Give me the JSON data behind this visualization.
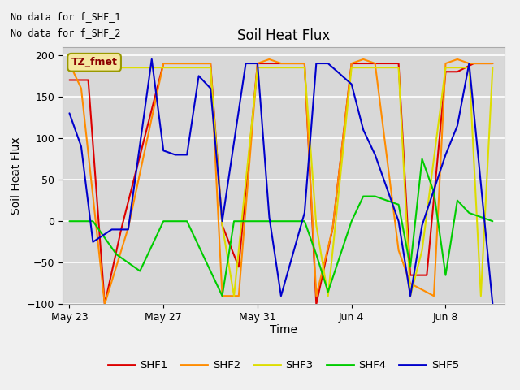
{
  "title": "Soil Heat Flux",
  "ylabel": "Soil Heat Flux",
  "xlabel": "Time",
  "ylim": [
    -100,
    210
  ],
  "yticks": [
    -100,
    -50,
    0,
    50,
    100,
    150,
    200
  ],
  "annotations": [
    "No data for f_SHF_1",
    "No data for f_SHF_2"
  ],
  "legend_label": "TZ_fmet",
  "xtick_labels": [
    "May 23",
    "May 27",
    "May 31",
    "Jun 4",
    "Jun 8"
  ],
  "xtick_pos": [
    0,
    4,
    8,
    12,
    16
  ],
  "xlim": [
    -0.3,
    18.5
  ],
  "series": {
    "SHF1": {
      "color": "#dd0000",
      "x": [
        0.0,
        0.8,
        1.5,
        2.2,
        4.0,
        4.5,
        5.2,
        6.0,
        6.5,
        7.2,
        8.0,
        8.5,
        9.2,
        10.0,
        10.5,
        11.2,
        12.0,
        12.5,
        13.2,
        14.0,
        14.5,
        15.2,
        16.0,
        16.5,
        17.2,
        18.0
      ],
      "y": [
        170,
        170,
        -100,
        -10,
        190,
        190,
        190,
        190,
        -5,
        -55,
        190,
        190,
        190,
        190,
        -100,
        -8,
        190,
        190,
        190,
        190,
        -65,
        -65,
        180,
        180,
        190,
        190
      ]
    },
    "SHF2": {
      "color": "#ff8c00",
      "x": [
        0.0,
        0.5,
        1.5,
        2.5,
        4.0,
        4.5,
        5.2,
        6.0,
        6.5,
        7.2,
        8.0,
        8.5,
        9.0,
        10.0,
        10.5,
        11.2,
        12.0,
        12.5,
        13.0,
        14.0,
        14.5,
        15.5,
        16.0,
        16.5,
        17.0,
        18.0
      ],
      "y": [
        190,
        160,
        -100,
        -8,
        190,
        190,
        190,
        190,
        -90,
        -90,
        190,
        195,
        190,
        190,
        -90,
        -8,
        190,
        195,
        190,
        -35,
        -75,
        -90,
        190,
        195,
        190,
        190
      ]
    },
    "SHF3": {
      "color": "#dddd00",
      "x": [
        0.0,
        1.0,
        2.0,
        3.0,
        4.0,
        5.0,
        6.0,
        6.5,
        7.0,
        8.0,
        9.0,
        10.0,
        10.5,
        11.0,
        12.0,
        13.0,
        14.0,
        14.5,
        15.0,
        16.0,
        17.0,
        17.5,
        18.0
      ],
      "y": [
        185,
        185,
        185,
        185,
        185,
        185,
        185,
        -5,
        -90,
        185,
        185,
        185,
        -5,
        -90,
        185,
        185,
        185,
        -90,
        -35,
        185,
        185,
        -90,
        185
      ]
    },
    "SHF4": {
      "color": "#00cc00",
      "x": [
        0.0,
        1.0,
        2.0,
        3.0,
        4.0,
        5.0,
        6.0,
        6.5,
        7.0,
        8.0,
        9.0,
        10.0,
        10.5,
        11.0,
        12.0,
        12.5,
        13.0,
        14.0,
        14.5,
        15.0,
        15.5,
        16.0,
        16.5,
        17.0,
        18.0
      ],
      "y": [
        0,
        0,
        -40,
        -60,
        0,
        0,
        -60,
        -90,
        0,
        0,
        0,
        0,
        -40,
        -85,
        0,
        30,
        30,
        20,
        -55,
        75,
        35,
        -65,
        25,
        10,
        0
      ]
    },
    "SHF5": {
      "color": "#0000cc",
      "x": [
        0.0,
        0.5,
        1.0,
        1.8,
        2.5,
        3.5,
        4.0,
        4.5,
        5.0,
        5.5,
        6.0,
        6.5,
        7.5,
        8.0,
        8.5,
        9.0,
        10.0,
        10.5,
        11.0,
        12.0,
        12.5,
        13.0,
        14.0,
        14.5,
        15.0,
        16.0,
        16.5,
        17.0,
        18.0
      ],
      "y": [
        130,
        90,
        -25,
        -10,
        -10,
        195,
        85,
        80,
        80,
        175,
        160,
        0,
        190,
        190,
        5,
        -90,
        10,
        190,
        190,
        165,
        110,
        80,
        0,
        -90,
        -5,
        80,
        115,
        190,
        -100
      ]
    }
  },
  "bg_color": "#d8d8d8",
  "plot_bg_color": "#d8d8d8",
  "grid_color": "#ffffff",
  "title_fontsize": 12,
  "axis_label_fontsize": 10,
  "tick_fontsize": 9
}
